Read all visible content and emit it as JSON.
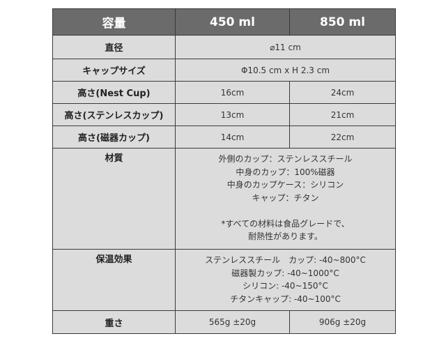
{
  "header": {
    "label": "容量",
    "col1": "450 ml",
    "col2": "850 ml"
  },
  "rows": {
    "diameter": {
      "label": "直径",
      "value": "⌀11 cm"
    },
    "cap_size": {
      "label": "キャップサイズ",
      "value": "Φ10.5 cm x H 2.3 cm"
    },
    "height_nest": {
      "label": "高さ(Nest Cup)",
      "v1": "16cm",
      "v2": "24cm"
    },
    "height_stainless": {
      "label": "高さ(ステンレスカップ)",
      "v1": "13cm",
      "v2": "21cm"
    },
    "height_porcelain": {
      "label": "高さ(磁器カップ)",
      "v1": "14cm",
      "v2": "22cm"
    },
    "material": {
      "label": "材質",
      "lines": [
        "外側のカップ：ステンレススチール",
        "中身のカップ：100%磁器",
        "中身のカップケース：シリコン",
        "キャップ：チタン",
        "",
        "*すべての材料は食品グレードで、",
        "耐熱性があります。"
      ]
    },
    "heat": {
      "label": "保温効果",
      "lines": [
        "ステンレススチール　カップ: -40~800°C",
        "磁器製カップ: -40~1000°C",
        "シリコン: -40~150°C",
        "チタンキャップ: -40~100°C"
      ]
    },
    "weight": {
      "label": "重さ",
      "v1": "565g ±20g",
      "v2": "906g ±20g"
    }
  }
}
